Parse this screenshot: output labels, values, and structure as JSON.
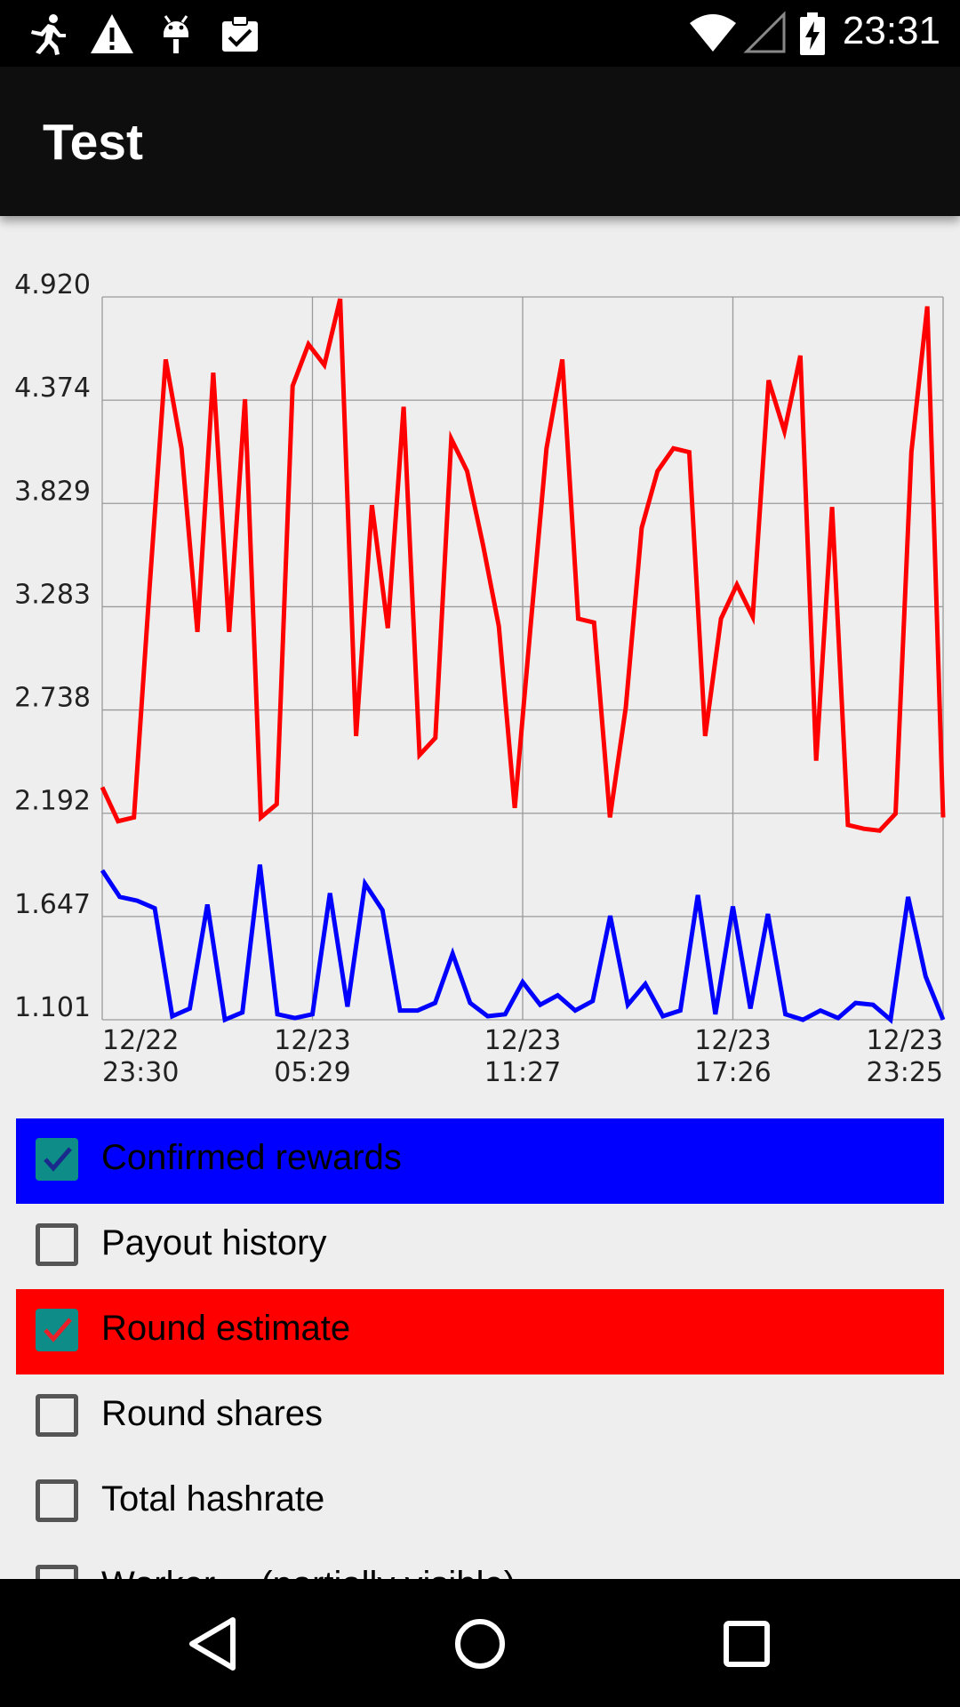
{
  "status_bar": {
    "icons": [
      "running-person-icon",
      "warning-icon",
      "android-icon",
      "clipboard-check-icon"
    ],
    "right_icons": [
      "wifi-icon",
      "signal-icon",
      "battery-charging-icon"
    ],
    "time": "23:31"
  },
  "app_bar": {
    "title": "Test"
  },
  "chart_data": {
    "type": "line",
    "y_tick_labels": [
      "4.920",
      "4.374",
      "3.829",
      "3.283",
      "2.738",
      "2.192",
      "1.647",
      "1.101"
    ],
    "ylim": [
      1.101,
      4.92
    ],
    "x_tick_labels": [
      {
        "line1": "12/22",
        "line2": "23:30"
      },
      {
        "line1": "12/23",
        "line2": "05:29"
      },
      {
        "line1": "12/23",
        "line2": "11:27"
      },
      {
        "line1": "12/23",
        "line2": "17:26"
      },
      {
        "line1": "12/23",
        "line2": "23:25"
      }
    ],
    "grid": true,
    "series": [
      {
        "color": "#ff0000",
        "values": [
          2.33,
          2.15,
          2.17,
          3.4,
          4.59,
          4.12,
          3.15,
          4.52,
          3.15,
          4.38,
          2.17,
          2.24,
          4.45,
          4.67,
          4.56,
          4.91,
          2.6,
          3.82,
          3.17,
          4.34,
          2.5,
          2.59,
          4.17,
          4.0,
          3.61,
          3.18,
          2.22,
          3.18,
          4.12,
          4.59,
          3.22,
          3.2,
          2.17,
          2.75,
          3.7,
          4.0,
          4.12,
          4.1,
          2.6,
          3.22,
          3.4,
          3.23,
          4.48,
          4.21,
          4.61,
          2.47,
          3.81,
          2.13,
          2.11,
          2.1,
          2.19,
          4.1,
          4.87,
          2.17
        ],
        "color_role": "round-estimate"
      },
      {
        "color": "#0000ff",
        "values": [
          1.89,
          1.75,
          1.73,
          1.69,
          1.12,
          1.16,
          1.71,
          1.1,
          1.14,
          1.92,
          1.13,
          1.11,
          1.13,
          1.77,
          1.17,
          1.82,
          1.68,
          1.15,
          1.15,
          1.19,
          1.45,
          1.19,
          1.12,
          1.13,
          1.3,
          1.18,
          1.23,
          1.15,
          1.2,
          1.65,
          1.18,
          1.29,
          1.12,
          1.15,
          1.76,
          1.13,
          1.7,
          1.16,
          1.66,
          1.13,
          1.1,
          1.15,
          1.11,
          1.19,
          1.18,
          1.1,
          1.75,
          1.33,
          1.1
        ],
        "color_role": "confirmed-rewards"
      }
    ]
  },
  "legend": {
    "items": [
      {
        "label": "Confirmed rewards",
        "checked": true,
        "bg": "#0000ff",
        "check_color": "#1a2a8c"
      },
      {
        "label": "Payout history",
        "checked": false,
        "bg": ""
      },
      {
        "label": "Round estimate",
        "checked": true,
        "bg": "#ff0000",
        "check_color": "#e8202a"
      },
      {
        "label": "Round shares",
        "checked": false,
        "bg": ""
      },
      {
        "label": "Total hashrate",
        "checked": false,
        "bg": ""
      },
      {
        "label": "Worker… (partially visible)",
        "checked": false,
        "bg": ""
      }
    ]
  },
  "nav_bar": {
    "icons": [
      "back-icon",
      "home-icon",
      "recents-icon"
    ]
  }
}
